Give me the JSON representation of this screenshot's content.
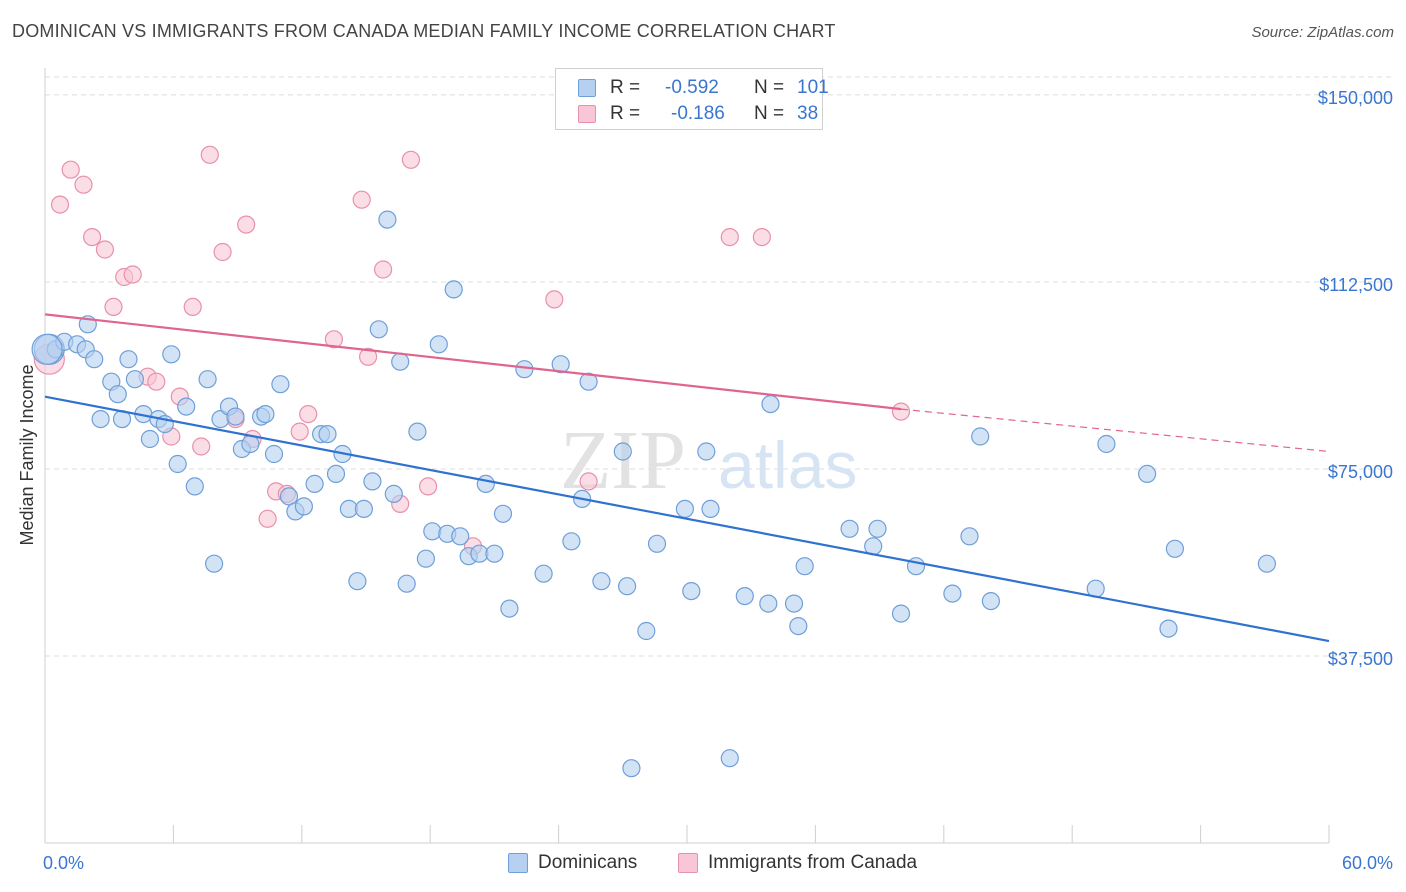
{
  "title": "DOMINICAN VS IMMIGRANTS FROM CANADA MEDIAN FAMILY INCOME CORRELATION CHART",
  "source": "Source: ZipAtlas.com",
  "watermark": {
    "zip": "ZIP",
    "atlas": "atlas"
  },
  "legend": {
    "r_label": "R =",
    "n_label": "N =",
    "rows": [
      {
        "r": "-0.592",
        "n": "101"
      },
      {
        "r": "-0.186",
        "n": "38"
      }
    ]
  },
  "bottom_legend": [
    "Dominicans",
    "Immigrants from Canada"
  ],
  "colors": {
    "blue_fill": "#b5d0f0",
    "blue_stroke": "#6f9fd8",
    "blue_line": "#2f72d0",
    "pink_fill": "#f8c6d6",
    "pink_stroke": "#e890ac",
    "pink_line": "#e0658e",
    "tick_label": "#3a76d0",
    "grid": "#dcdcdc"
  },
  "chart_data": {
    "type": "scatter",
    "title": "DOMINICAN VS IMMIGRANTS FROM CANADA MEDIAN FAMILY INCOME CORRELATION CHART",
    "xlabel": "",
    "ylabel": "Median Family Income",
    "xlim": [
      0,
      60
    ],
    "ylim": [
      0,
      156000
    ],
    "x_tick_labels": [
      "0.0%",
      "60.0%"
    ],
    "y_ticks": [
      37500,
      75000,
      112500,
      150000
    ],
    "y_tick_labels": [
      "$37,500",
      "$75,000",
      "$112,500",
      "$150,000"
    ],
    "grid": true,
    "legend_position": "top-center",
    "series": [
      {
        "name": "Dominicans",
        "r": -0.592,
        "n": 101,
        "trend": {
          "x": [
            0,
            60
          ],
          "y": [
            89500,
            40500
          ]
        },
        "points": [
          [
            0.2,
            99000
          ],
          [
            0.5,
            99000
          ],
          [
            0.9,
            100500
          ],
          [
            1.5,
            100000
          ],
          [
            1.9,
            99000
          ],
          [
            2.0,
            104000
          ],
          [
            2.3,
            97000
          ],
          [
            2.6,
            85000
          ],
          [
            3.1,
            92500
          ],
          [
            3.4,
            90000
          ],
          [
            3.6,
            85000
          ],
          [
            3.9,
            97000
          ],
          [
            4.2,
            93000
          ],
          [
            4.6,
            86000
          ],
          [
            4.9,
            81000
          ],
          [
            5.3,
            85000
          ],
          [
            5.6,
            84000
          ],
          [
            5.9,
            98000
          ],
          [
            6.2,
            76000
          ],
          [
            6.6,
            87500
          ],
          [
            7.0,
            71500
          ],
          [
            7.6,
            93000
          ],
          [
            7.9,
            56000
          ],
          [
            8.2,
            85000
          ],
          [
            8.6,
            87500
          ],
          [
            8.9,
            85500
          ],
          [
            9.2,
            79000
          ],
          [
            9.6,
            80000
          ],
          [
            10.1,
            85500
          ],
          [
            10.3,
            86000
          ],
          [
            10.7,
            78000
          ],
          [
            11.0,
            92000
          ],
          [
            11.4,
            69500
          ],
          [
            11.7,
            66500
          ],
          [
            12.1,
            67500
          ],
          [
            12.6,
            72000
          ],
          [
            12.9,
            82000
          ],
          [
            13.2,
            82000
          ],
          [
            13.6,
            74000
          ],
          [
            13.9,
            78000
          ],
          [
            14.2,
            67000
          ],
          [
            14.6,
            52500
          ],
          [
            14.9,
            67000
          ],
          [
            15.3,
            72500
          ],
          [
            15.6,
            103000
          ],
          [
            16.0,
            125000
          ],
          [
            16.3,
            70000
          ],
          [
            16.6,
            96500
          ],
          [
            16.9,
            52000
          ],
          [
            17.4,
            82500
          ],
          [
            17.8,
            57000
          ],
          [
            18.1,
            62500
          ],
          [
            18.4,
            100000
          ],
          [
            18.8,
            62000
          ],
          [
            19.1,
            111000
          ],
          [
            19.4,
            61500
          ],
          [
            19.8,
            57500
          ],
          [
            20.3,
            58000
          ],
          [
            20.6,
            72000
          ],
          [
            21.0,
            58000
          ],
          [
            21.4,
            66000
          ],
          [
            21.7,
            47000
          ],
          [
            22.4,
            95000
          ],
          [
            23.3,
            54000
          ],
          [
            24.1,
            96000
          ],
          [
            24.6,
            60500
          ],
          [
            25.1,
            69000
          ],
          [
            25.4,
            92500
          ],
          [
            26.0,
            52500
          ],
          [
            27.0,
            78500
          ],
          [
            27.2,
            51500
          ],
          [
            27.4,
            15000
          ],
          [
            28.1,
            42500
          ],
          [
            28.6,
            60000
          ],
          [
            29.9,
            67000
          ],
          [
            30.2,
            50500
          ],
          [
            30.9,
            78500
          ],
          [
            31.1,
            67000
          ],
          [
            32.0,
            17000
          ],
          [
            32.7,
            49500
          ],
          [
            33.8,
            48000
          ],
          [
            33.9,
            88000
          ],
          [
            35.0,
            48000
          ],
          [
            35.2,
            43500
          ],
          [
            35.5,
            55500
          ],
          [
            37.6,
            63000
          ],
          [
            38.7,
            59500
          ],
          [
            38.9,
            63000
          ],
          [
            40.0,
            46000
          ],
          [
            40.7,
            55500
          ],
          [
            42.4,
            50000
          ],
          [
            43.2,
            61500
          ],
          [
            43.7,
            81500
          ],
          [
            44.2,
            48500
          ],
          [
            49.1,
            51000
          ],
          [
            49.6,
            80000
          ],
          [
            51.5,
            74000
          ],
          [
            52.5,
            43000
          ],
          [
            52.8,
            59000
          ],
          [
            57.1,
            56000
          ],
          [
            0.1,
            99000
          ]
        ]
      },
      {
        "name": "Immigrants from Canada",
        "r": -0.186,
        "n": 38,
        "trend": {
          "x": [
            0,
            40
          ],
          "y": [
            106000,
            87000
          ],
          "dashed_x": [
            40,
            60
          ],
          "dashed_y": [
            87000,
            78500
          ]
        },
        "points": [
          [
            0.2,
            97000
          ],
          [
            0.7,
            128000
          ],
          [
            1.2,
            135000
          ],
          [
            1.8,
            132000
          ],
          [
            2.2,
            121500
          ],
          [
            2.8,
            119000
          ],
          [
            3.2,
            107500
          ],
          [
            3.7,
            113500
          ],
          [
            4.1,
            114000
          ],
          [
            4.8,
            93500
          ],
          [
            5.2,
            92500
          ],
          [
            5.9,
            81500
          ],
          [
            6.3,
            89500
          ],
          [
            6.9,
            107500
          ],
          [
            7.3,
            79500
          ],
          [
            7.7,
            138000
          ],
          [
            8.3,
            118500
          ],
          [
            8.9,
            85000
          ],
          [
            9.4,
            124000
          ],
          [
            9.7,
            81000
          ],
          [
            10.4,
            65000
          ],
          [
            10.8,
            70500
          ],
          [
            11.3,
            70000
          ],
          [
            11.9,
            82500
          ],
          [
            12.3,
            86000
          ],
          [
            13.5,
            101000
          ],
          [
            14.8,
            129000
          ],
          [
            15.1,
            97500
          ],
          [
            15.8,
            115000
          ],
          [
            16.6,
            68000
          ],
          [
            17.1,
            137000
          ],
          [
            17.9,
            71500
          ],
          [
            20.0,
            59500
          ],
          [
            23.8,
            109000
          ],
          [
            25.4,
            72500
          ],
          [
            32.0,
            121500
          ],
          [
            33.5,
            121500
          ],
          [
            40.0,
            86500
          ]
        ]
      }
    ]
  }
}
